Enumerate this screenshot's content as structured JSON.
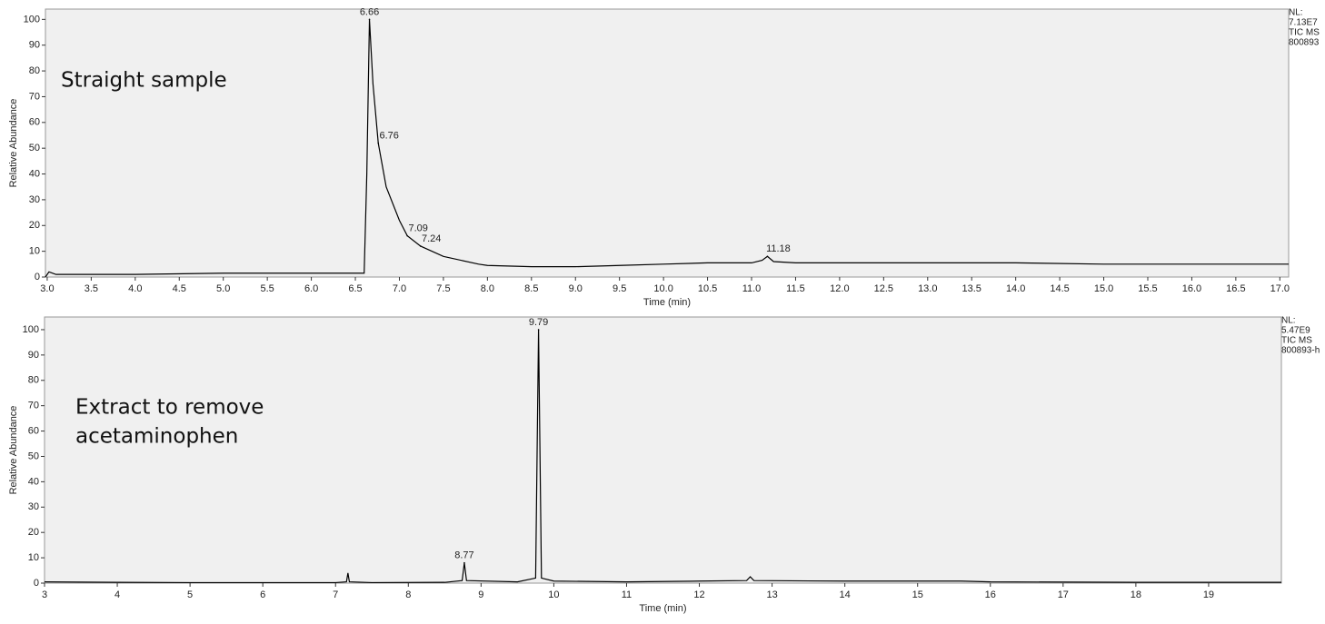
{
  "chart_data": [
    {
      "type": "line",
      "annotation": [
        "Straight sample"
      ],
      "x_label": "Time (min)",
      "y_label": "Relative Abundance",
      "info": [
        "NL:",
        "7.13E7",
        "TIC  MS",
        "800893"
      ],
      "color": "#000000",
      "x": [
        2.98,
        3.02,
        3.1,
        4.0,
        5.0,
        6.0,
        6.6,
        6.63,
        6.66,
        6.7,
        6.76,
        6.85,
        7.0,
        7.09,
        7.24,
        7.5,
        7.9,
        8.0,
        8.5,
        9.0,
        9.5,
        10.0,
        10.5,
        11.0,
        11.12,
        11.18,
        11.25,
        11.5,
        12.0,
        13.0,
        14.0,
        15.0,
        16.0,
        17.1
      ],
      "values": [
        0,
        2,
        1,
        1,
        1.5,
        1.5,
        1.5,
        40,
        100,
        75,
        52,
        35,
        22,
        16,
        12,
        8,
        5,
        4.5,
        4,
        4,
        4.5,
        5,
        5.5,
        5.5,
        6.5,
        8,
        6,
        5.5,
        5.5,
        5.5,
        5.5,
        5,
        5,
        5
      ],
      "peaks": [
        {
          "x": 6.66,
          "y": 100
        },
        {
          "x": 6.76,
          "y": 52
        },
        {
          "x": 7.09,
          "y": 16
        },
        {
          "x": 7.24,
          "y": 12
        },
        {
          "x": 11.18,
          "y": 8
        }
      ],
      "xlim": [
        2.98,
        17.1
      ],
      "ylim": [
        0,
        104
      ],
      "xticks": [
        {
          "value": 3,
          "label": "3.0"
        },
        3.5,
        {
          "value": 4,
          "label": "4.0"
        },
        4.5,
        {
          "value": 5,
          "label": "5.0"
        },
        5.5,
        {
          "value": 6,
          "label": "6.0"
        },
        6.5,
        {
          "value": 7,
          "label": "7.0"
        },
        7.5,
        {
          "value": 8,
          "label": "8.0"
        },
        8.5,
        {
          "value": 9,
          "label": "9.0"
        },
        9.5,
        {
          "value": 10,
          "label": "10.0"
        },
        10.5,
        {
          "value": 11,
          "label": "11.0"
        },
        11.5,
        {
          "value": 12,
          "label": "12.0"
        },
        12.5,
        {
          "value": 13,
          "label": "13.0"
        },
        13.5,
        {
          "value": 14,
          "label": "14.0"
        },
        14.5,
        {
          "value": 15,
          "label": "15.0"
        },
        15.5,
        {
          "value": 16,
          "label": "16.0"
        },
        16.5,
        {
          "value": 17,
          "label": "17.0"
        }
      ],
      "yticks": [
        0,
        10,
        20,
        30,
        40,
        50,
        60,
        70,
        80,
        90,
        100
      ]
    },
    {
      "type": "line",
      "annotation": [
        "Extract to remove",
        "acetaminophen"
      ],
      "x_label": "Time (min)",
      "y_label": "Relative Abundance",
      "info": [
        "NL:",
        "5.47E9",
        "TIC  MS",
        "800893-h"
      ],
      "color": "#000000",
      "x": [
        3,
        4,
        5,
        6,
        7,
        7.15,
        7.17,
        7.19,
        7.5,
        8.5,
        8.74,
        8.77,
        8.8,
        9.5,
        9.75,
        9.79,
        9.83,
        10,
        11,
        12,
        12.65,
        12.7,
        12.75,
        14,
        15.6,
        16,
        18,
        20
      ],
      "values": [
        0.5,
        0.3,
        0.2,
        0.2,
        0.2,
        0.5,
        4,
        0.5,
        0.2,
        0.3,
        1,
        8,
        1,
        0.5,
        2,
        100,
        2,
        0.8,
        0.5,
        0.8,
        1,
        2.5,
        1,
        0.8,
        0.8,
        0.5,
        0.3,
        0.3
      ],
      "peaks": [
        {
          "x": 8.77,
          "y": 8
        },
        {
          "x": 9.79,
          "y": 100
        }
      ],
      "xlim": [
        3,
        20
      ],
      "ylim": [
        0,
        105
      ],
      "xticks": [
        3,
        4,
        5,
        6,
        7,
        8,
        9,
        10,
        11,
        12,
        13,
        14,
        15,
        16,
        17,
        18,
        19
      ],
      "yticks": [
        0,
        10,
        20,
        30,
        40,
        50,
        60,
        70,
        80,
        90,
        100
      ]
    }
  ]
}
